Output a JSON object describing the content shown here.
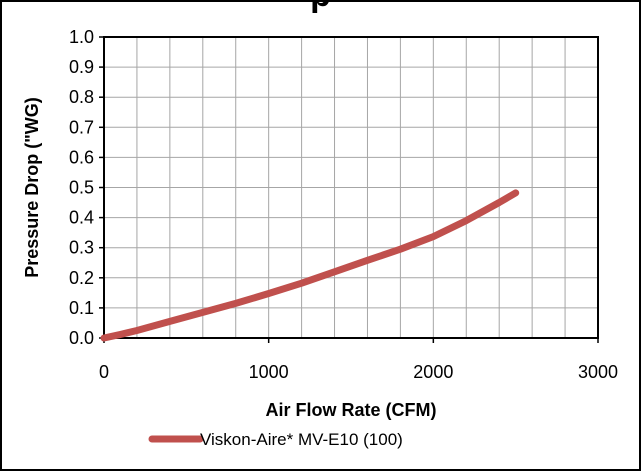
{
  "title_fragment": "p",
  "chart_data": {
    "type": "line",
    "xlabel": "Air Flow Rate (CFM)",
    "ylabel": "Pressure Drop (\"WG)",
    "xlim": [
      0,
      3000
    ],
    "ylim": [
      0.0,
      1.0
    ],
    "x_ticks": [
      "0",
      "1000",
      "2000",
      "3000"
    ],
    "y_ticks": [
      "0.0",
      "0.1",
      "0.2",
      "0.3",
      "0.4",
      "0.5",
      "0.6",
      "0.7",
      "0.8",
      "0.9",
      "1.0"
    ],
    "grid": true,
    "legend_position": "bottom",
    "series": [
      {
        "name": "Viskon-Aire* MV-E10 (100)",
        "color": "#C0504D",
        "x": [
          0,
          100,
          200,
          400,
          600,
          800,
          1000,
          1200,
          1400,
          1600,
          1800,
          2000,
          2200,
          2400,
          2500
        ],
        "y": [
          0.0,
          0.012,
          0.025,
          0.055,
          0.085,
          0.115,
          0.148,
          0.182,
          0.22,
          0.258,
          0.295,
          0.337,
          0.39,
          0.45,
          0.482
        ]
      }
    ]
  }
}
